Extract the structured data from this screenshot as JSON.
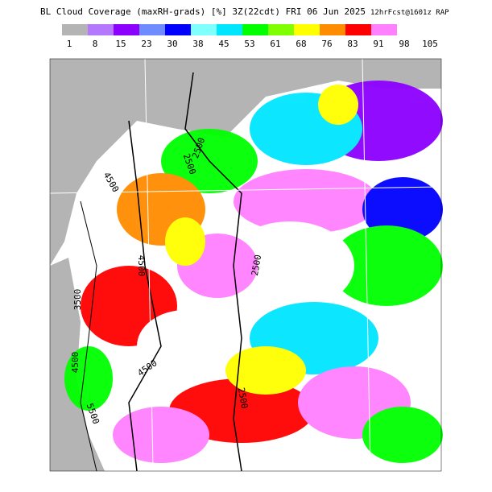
{
  "header": {
    "title": "BL Cloud Coverage (maxRH-grads) [%] 3Z(22cdt) FRI 06 Jun 2025",
    "subtitle": "12hrFcst@1601z RAP"
  },
  "colorbar": {
    "labels": [
      1,
      8,
      15,
      23,
      30,
      38,
      45,
      53,
      61,
      68,
      76,
      83,
      91,
      98,
      105
    ],
    "colors": [
      "#b4b4b4",
      "#b478ff",
      "#8c00ff",
      "#6e8cff",
      "#0000ff",
      "#80ffff",
      "#00e6ff",
      "#00ff00",
      "#80ff00",
      "#ffff00",
      "#ff8c00",
      "#ff0000",
      "#ff80ff",
      "#ffffff"
    ]
  },
  "map": {
    "contour_labels": [
      "2500",
      "2500",
      "4500",
      "4500",
      "2500",
      "4500",
      "2500",
      "3500",
      "4500",
      "5500"
    ]
  }
}
